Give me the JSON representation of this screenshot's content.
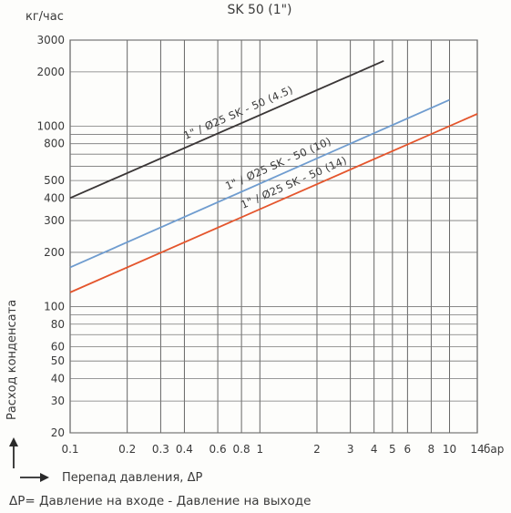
{
  "chart_data": {
    "type": "line",
    "title": "SK 50 (1\")",
    "ylabel": "Расход конденсата",
    "y_units": "кг/час",
    "xlabel": "Перепад давления, ΔP",
    "x_units": "бар",
    "x_scale": "log",
    "y_scale": "log",
    "xlim": [
      0.1,
      14
    ],
    "ylim": [
      20,
      3000
    ],
    "grid": true,
    "x_ticks": [
      0.1,
      0.2,
      0.3,
      0.4,
      0.6,
      0.8,
      1,
      2,
      3,
      4,
      5,
      6,
      8,
      10,
      14
    ],
    "x_tick_labels": [
      "0.1",
      "0.2",
      "0.3",
      "0.4",
      "0.6",
      "0.8",
      "1",
      "2",
      "3",
      "4",
      "5",
      "6",
      "8",
      "10",
      "14"
    ],
    "y_ticks": [
      20,
      30,
      40,
      50,
      60,
      80,
      100,
      200,
      300,
      400,
      500,
      800,
      1000,
      2000,
      3000
    ],
    "y_tick_labels": [
      "20",
      "30",
      "40",
      "50",
      "60",
      "80",
      "100",
      "200",
      "300",
      "400",
      "500",
      "800",
      "1000",
      "2000",
      "3000"
    ],
    "series": [
      {
        "name": "1\" / Ø25 SK - 50 (4.5)",
        "color": "#3a3636",
        "x": [
          0.1,
          4.5
        ],
        "y": [
          400,
          2300
        ]
      },
      {
        "name": "1\" / Ø25 SK - 50 (10)",
        "color": "#6f9ccf",
        "x": [
          0.1,
          10
        ],
        "y": [
          165,
          1400
        ]
      },
      {
        "name": "1\" / Ø25 SK - 50 (14)",
        "color": "#e4552c",
        "x": [
          0.1,
          14
        ],
        "y": [
          120,
          1170
        ]
      }
    ]
  },
  "footer_note": "ΔP= Давление на входе - Давление на выходе"
}
